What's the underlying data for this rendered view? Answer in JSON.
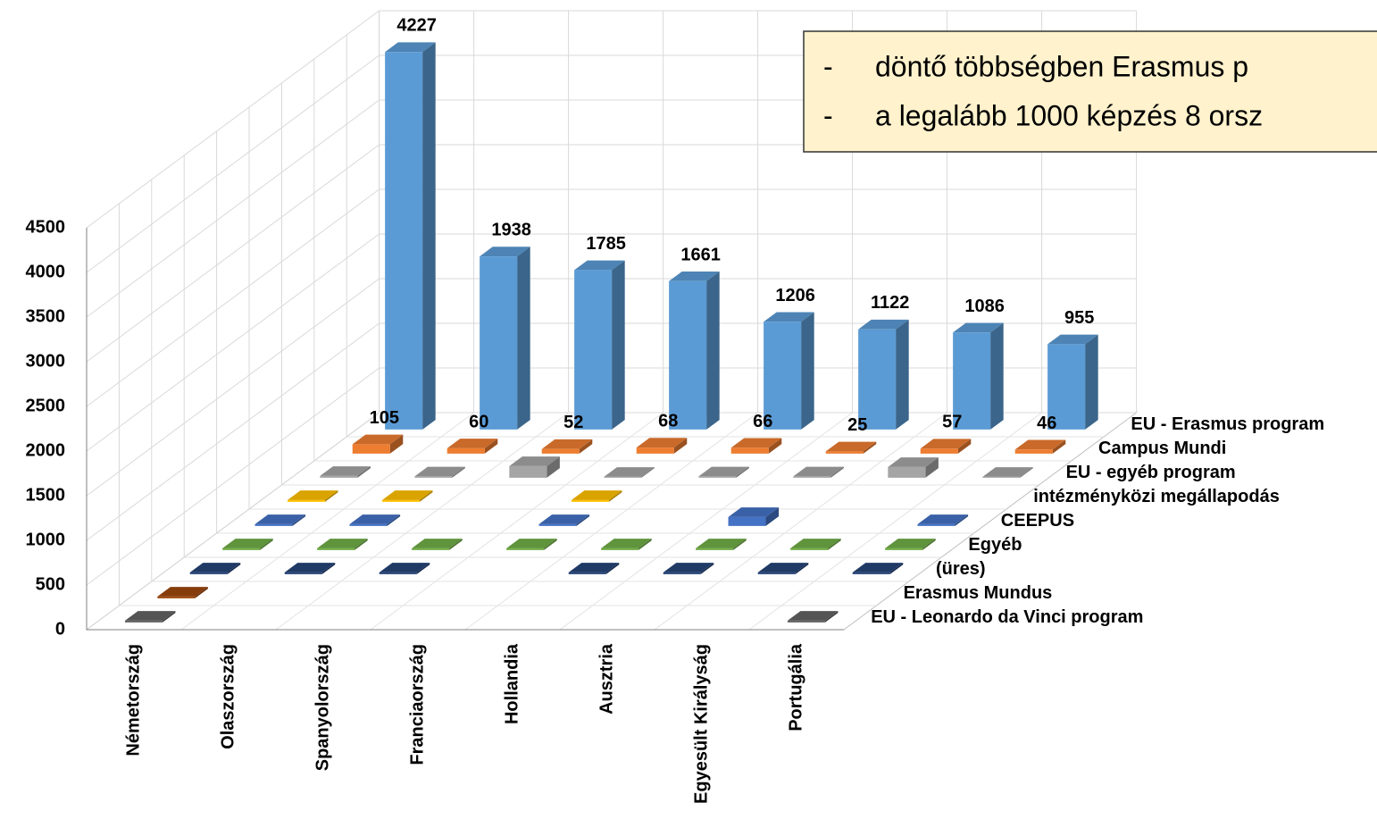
{
  "chart_data": {
    "type": "bar3d",
    "categories": [
      "Németország",
      "Olaszország",
      "Spanyolország",
      "Franciaország",
      "Hollandia",
      "Ausztria",
      "Egyesült Királyság",
      "Portugália"
    ],
    "series": [
      {
        "name": "EU - Erasmus program",
        "color": "#5b9bd5",
        "values": [
          4227,
          1938,
          1785,
          1661,
          1206,
          1122,
          1086,
          955
        ],
        "show_labels": true
      },
      {
        "name": "Campus Mundi",
        "color": "#ed7d31",
        "values": [
          105,
          60,
          52,
          68,
          66,
          25,
          57,
          46
        ],
        "show_labels": true
      },
      {
        "name": "EU - egyéb program",
        "color": "#a5a5a5",
        "values": [
          20,
          15,
          130,
          10,
          15,
          15,
          120,
          10
        ]
      },
      {
        "name": "intézményközi megállapodás",
        "color": "#ffc000",
        "values": [
          20,
          20,
          null,
          20,
          null,
          null,
          null,
          null
        ]
      },
      {
        "name": "CEEPUS",
        "color": "#4472c4",
        "values": [
          20,
          20,
          null,
          20,
          null,
          100,
          null,
          20
        ]
      },
      {
        "name": "Egyéb",
        "color": "#70ad47",
        "values": [
          20,
          20,
          20,
          20,
          20,
          20,
          20,
          20
        ]
      },
      {
        "name": "(üres)",
        "color": "#264478",
        "values": [
          20,
          20,
          20,
          null,
          20,
          20,
          20,
          20
        ]
      },
      {
        "name": "Erasmus Mundus",
        "color": "#9e480e",
        "values": [
          20,
          null,
          null,
          null,
          null,
          null,
          null,
          null
        ]
      },
      {
        "name": "EU - Leonardo da Vinci program",
        "color": "#636363",
        "values": [
          20,
          null,
          null,
          null,
          null,
          null,
          null,
          20
        ]
      }
    ],
    "ylim": [
      0,
      4500
    ],
    "yticks": [
      0,
      500,
      1000,
      1500,
      2000,
      2500,
      3000,
      3500,
      4000,
      4500
    ],
    "grid": true,
    "annotations": [
      {
        "bullet": "-",
        "text": "döntő többségben Erasmus p"
      },
      {
        "bullet": "-",
        "text": "a legalább 1000 képzés 8 orsz"
      }
    ]
  }
}
